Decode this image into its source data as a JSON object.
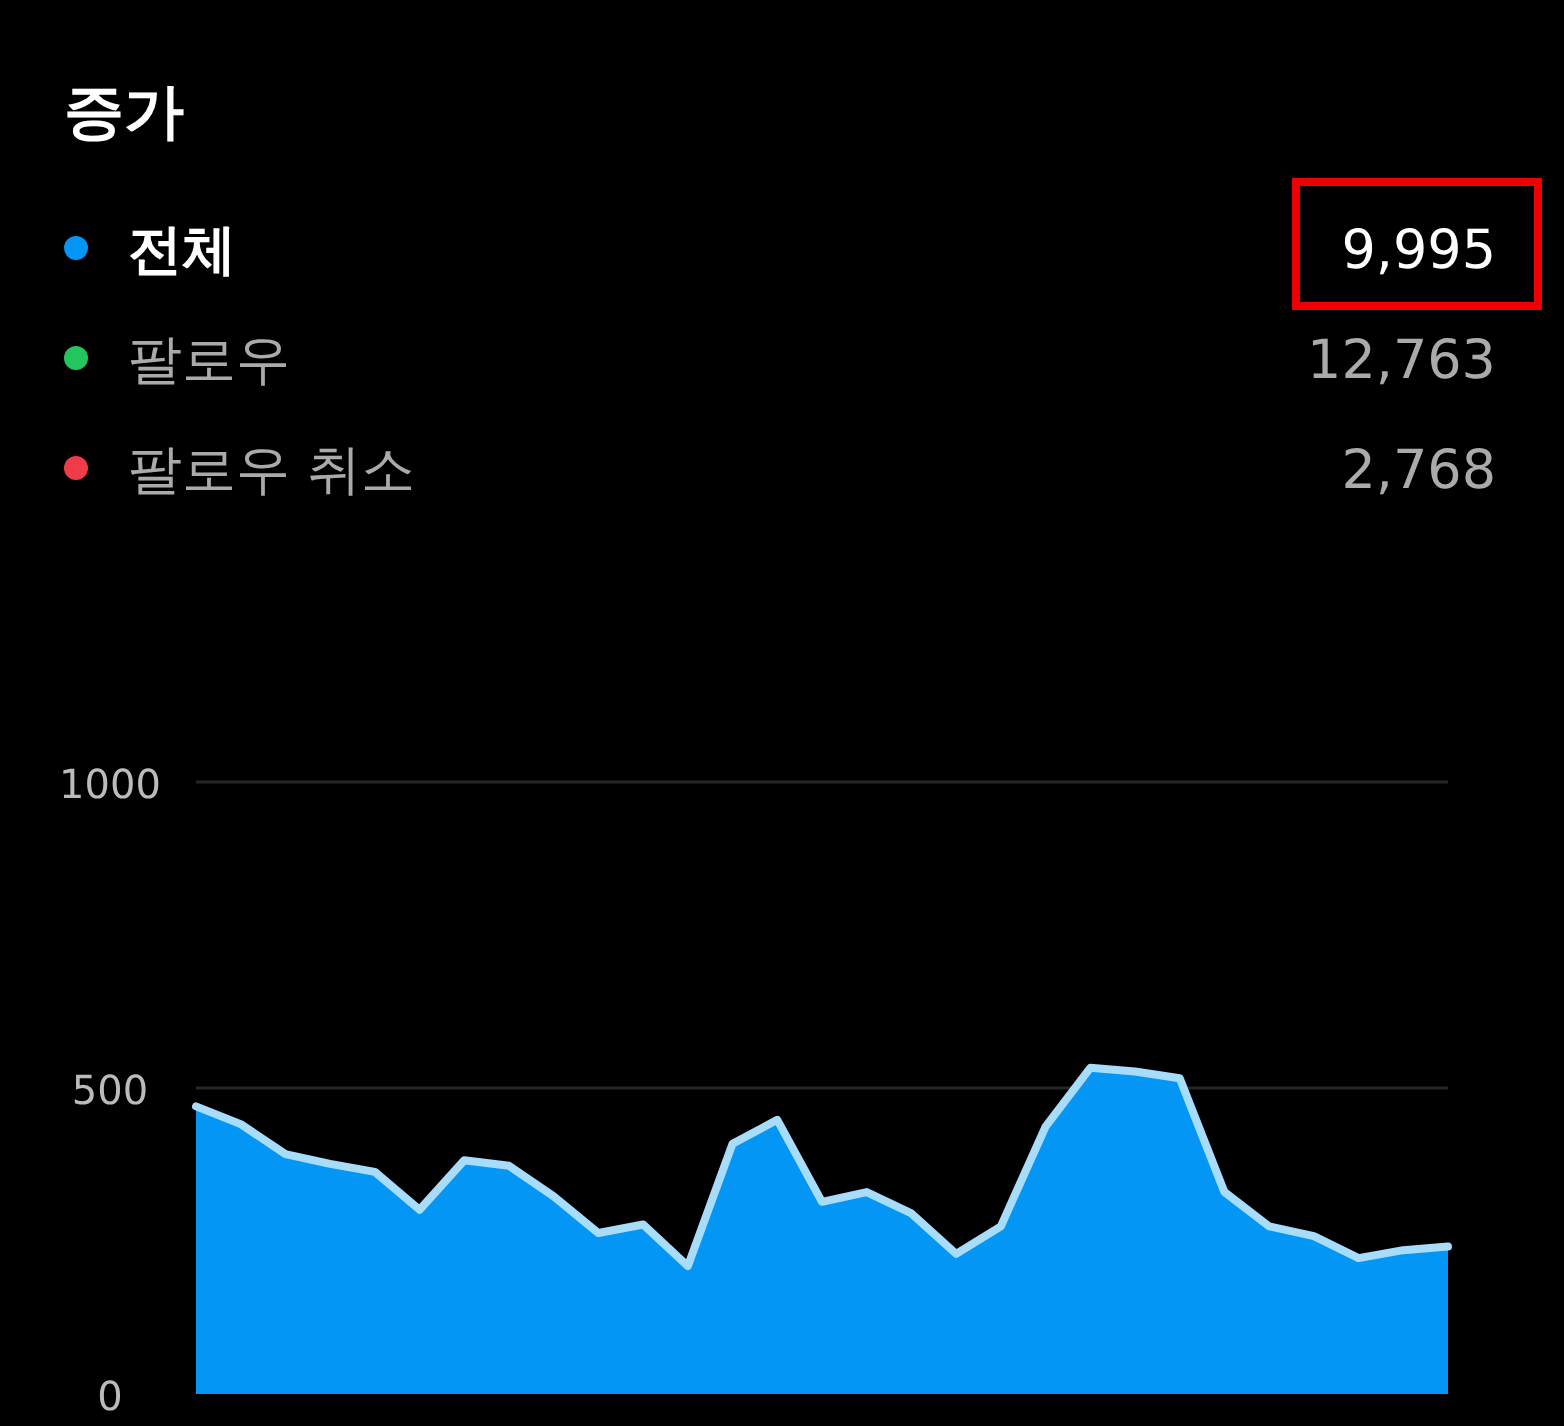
{
  "chart_data": {
    "type": "area",
    "title": "증가",
    "categories": [
      null,
      null,
      null,
      null,
      null,
      null,
      null,
      null,
      null,
      null,
      null,
      null,
      null,
      null,
      null,
      null,
      null,
      null,
      null,
      null,
      null,
      null,
      null,
      null,
      null,
      null,
      null,
      null,
      null
    ],
    "series": [
      {
        "name": "전체",
        "color": "#0396f5",
        "values": [
          470,
          441,
          392,
          376,
          363,
          301,
          382,
          373,
          323,
          263,
          277,
          209,
          409,
          448,
          314,
          330,
          295,
          229,
          274,
          437,
          533,
          527,
          516,
          330,
          274,
          258,
          222,
          235,
          241
        ]
      },
      {
        "name": "팔로우",
        "color": "#22c55e",
        "values": [
          null,
          null,
          null,
          null,
          null,
          null,
          null,
          null,
          null,
          null,
          null,
          null,
          null,
          null,
          null,
          null,
          null,
          null,
          null,
          null,
          null,
          null,
          null,
          null,
          null,
          null,
          null,
          null,
          null
        ]
      },
      {
        "name": "팔로우 취소",
        "color": "#ef3b4a",
        "values": [
          null,
          null,
          null,
          null,
          null,
          null,
          null,
          null,
          null,
          null,
          null,
          null,
          null,
          null,
          null,
          null,
          null,
          null,
          null,
          null,
          null,
          null,
          null,
          null,
          null,
          null,
          null,
          null,
          null
        ]
      }
    ],
    "annotations": [
      "9,995",
      "12,763",
      "2,768"
    ],
    "ylim": [
      0,
      1000
    ],
    "yticks": [
      0,
      500,
      1000
    ],
    "grid": "y",
    "legend": "top left"
  }
}
